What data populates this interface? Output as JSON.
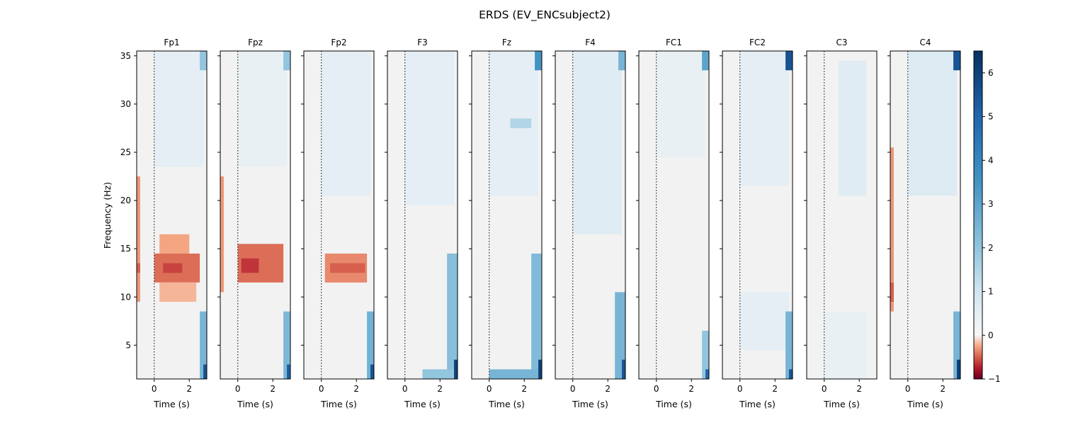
{
  "chart_data": {
    "type": "heatmap",
    "title": "ERDS (EV_ENCsubject2)",
    "ylabel": "Frequency (Hz)",
    "xlabel": "Time (s)",
    "xlim": [
      -1.0,
      3.0
    ],
    "ylim": [
      1.5,
      35.5
    ],
    "xticks": [
      0,
      2
    ],
    "yticks": [
      5,
      10,
      15,
      20,
      25,
      30,
      35
    ],
    "event_line_x": 0,
    "colorbar": {
      "min": -1,
      "max": 6.5,
      "ticks": [
        -1,
        0,
        1,
        2,
        3,
        4,
        5,
        6
      ],
      "colormap": "RdBu"
    },
    "baseline_color": "#f2f2f2",
    "channels": [
      "Fp1",
      "Fpz",
      "Fp2",
      "F3",
      "Fz",
      "F4",
      "FC1",
      "FC2",
      "C3",
      "C4"
    ],
    "regions": [
      {
        "channel": "Fp1",
        "x": [
          -1.0,
          -0.8
        ],
        "y": [
          9.5,
          22.5
        ],
        "value": -0.3
      },
      {
        "channel": "Fp1",
        "x": [
          -1.0,
          -0.8
        ],
        "y": [
          12.5,
          13.5
        ],
        "value": -0.5
      },
      {
        "channel": "Fp1",
        "x": [
          0.0,
          2.6
        ],
        "y": [
          11.5,
          14.5
        ],
        "value": -0.45
      },
      {
        "channel": "Fp1",
        "x": [
          0.3,
          2.0
        ],
        "y": [
          14.5,
          16.5
        ],
        "value": -0.25
      },
      {
        "channel": "Fp1",
        "x": [
          0.3,
          2.4
        ],
        "y": [
          9.5,
          11.5
        ],
        "value": -0.2
      },
      {
        "channel": "Fp1",
        "x": [
          0.5,
          1.6
        ],
        "y": [
          12.5,
          13.5
        ],
        "value": -0.6
      },
      {
        "channel": "Fp1",
        "x": [
          0.0,
          2.8
        ],
        "y": [
          23.5,
          35.5
        ],
        "value": 0.5
      },
      {
        "channel": "Fp1",
        "x": [
          2.6,
          3.0
        ],
        "y": [
          1.5,
          8.5
        ],
        "value": 2.5
      },
      {
        "channel": "Fp1",
        "x": [
          2.8,
          3.0
        ],
        "y": [
          1.5,
          3.0
        ],
        "value": 5.5
      },
      {
        "channel": "Fp1",
        "x": [
          2.6,
          3.0
        ],
        "y": [
          33.5,
          35.5
        ],
        "value": 2.0
      },
      {
        "channel": "Fpz",
        "x": [
          -1.0,
          -0.8
        ],
        "y": [
          10.5,
          22.5
        ],
        "value": -0.3
      },
      {
        "channel": "Fpz",
        "x": [
          0.0,
          2.6
        ],
        "y": [
          11.5,
          15.5
        ],
        "value": -0.45
      },
      {
        "channel": "Fpz",
        "x": [
          0.2,
          1.2
        ],
        "y": [
          12.5,
          14.0
        ],
        "value": -0.65
      },
      {
        "channel": "Fpz",
        "x": [
          0.0,
          2.8
        ],
        "y": [
          23.5,
          35.5
        ],
        "value": 0.4
      },
      {
        "channel": "Fpz",
        "x": [
          2.6,
          3.0
        ],
        "y": [
          1.5,
          8.5
        ],
        "value": 2.4
      },
      {
        "channel": "Fpz",
        "x": [
          2.8,
          3.0
        ],
        "y": [
          1.5,
          3.0
        ],
        "value": 5.2
      },
      {
        "channel": "Fpz",
        "x": [
          2.6,
          3.0
        ],
        "y": [
          33.5,
          35.5
        ],
        "value": 2.0
      },
      {
        "channel": "Fp2",
        "x": [
          0.2,
          2.6
        ],
        "y": [
          11.5,
          14.5
        ],
        "value": -0.35
      },
      {
        "channel": "Fp2",
        "x": [
          0.5,
          2.5
        ],
        "y": [
          12.5,
          13.5
        ],
        "value": -0.5
      },
      {
        "channel": "Fp2",
        "x": [
          0.0,
          2.8
        ],
        "y": [
          20.5,
          35.5
        ],
        "value": 0.5
      },
      {
        "channel": "Fp2",
        "x": [
          2.6,
          3.0
        ],
        "y": [
          1.5,
          8.5
        ],
        "value": 2.6
      },
      {
        "channel": "Fp2",
        "x": [
          2.8,
          3.0
        ],
        "y": [
          1.5,
          3.0
        ],
        "value": 5.5
      },
      {
        "channel": "F3",
        "x": [
          0.0,
          2.8
        ],
        "y": [
          19.5,
          35.5
        ],
        "value": 0.5
      },
      {
        "channel": "F3",
        "x": [
          2.4,
          3.0
        ],
        "y": [
          1.5,
          14.5
        ],
        "value": 2.2
      },
      {
        "channel": "F3",
        "x": [
          2.8,
          3.0
        ],
        "y": [
          1.5,
          3.5
        ],
        "value": 6.0
      },
      {
        "channel": "F3",
        "x": [
          1.0,
          2.8
        ],
        "y": [
          1.5,
          2.5
        ],
        "value": 2.0
      },
      {
        "channel": "Fz",
        "x": [
          0.0,
          2.8
        ],
        "y": [
          20.5,
          35.5
        ],
        "value": 0.5
      },
      {
        "channel": "Fz",
        "x": [
          1.2,
          2.4
        ],
        "y": [
          27.5,
          28.5
        ],
        "value": 1.5
      },
      {
        "channel": "Fz",
        "x": [
          2.4,
          3.0
        ],
        "y": [
          1.5,
          14.5
        ],
        "value": 2.3
      },
      {
        "channel": "Fz",
        "x": [
          2.6,
          3.0
        ],
        "y": [
          33.5,
          35.5
        ],
        "value": 3.5
      },
      {
        "channel": "Fz",
        "x": [
          2.8,
          3.0
        ],
        "y": [
          1.5,
          3.5
        ],
        "value": 6.0
      },
      {
        "channel": "Fz",
        "x": [
          0.0,
          2.8
        ],
        "y": [
          1.5,
          2.5
        ],
        "value": 2.5
      },
      {
        "channel": "F4",
        "x": [
          0.0,
          2.8
        ],
        "y": [
          16.5,
          35.5
        ],
        "value": 0.6
      },
      {
        "channel": "F4",
        "x": [
          2.4,
          3.0
        ],
        "y": [
          1.5,
          10.5
        ],
        "value": 2.5
      },
      {
        "channel": "F4",
        "x": [
          2.8,
          3.0
        ],
        "y": [
          1.5,
          3.5
        ],
        "value": 5.5
      },
      {
        "channel": "F4",
        "x": [
          2.6,
          3.0
        ],
        "y": [
          33.5,
          35.5
        ],
        "value": 2.5
      },
      {
        "channel": "FC1",
        "x": [
          0.0,
          2.8
        ],
        "y": [
          24.5,
          35.5
        ],
        "value": 0.4
      },
      {
        "channel": "FC1",
        "x": [
          2.6,
          3.0
        ],
        "y": [
          1.5,
          6.5
        ],
        "value": 2.0
      },
      {
        "channel": "FC1",
        "x": [
          2.8,
          3.0
        ],
        "y": [
          1.5,
          2.5
        ],
        "value": 5.0
      },
      {
        "channel": "FC1",
        "x": [
          2.6,
          3.0
        ],
        "y": [
          33.5,
          35.5
        ],
        "value": 3.0
      },
      {
        "channel": "FC2",
        "x": [
          0.0,
          2.8
        ],
        "y": [
          21.5,
          35.5
        ],
        "value": 0.5
      },
      {
        "channel": "FC2",
        "x": [
          0.0,
          2.8
        ],
        "y": [
          4.5,
          10.5
        ],
        "value": 0.5
      },
      {
        "channel": "FC2",
        "x": [
          2.6,
          3.0
        ],
        "y": [
          1.5,
          8.5
        ],
        "value": 2.5
      },
      {
        "channel": "FC2",
        "x": [
          2.6,
          3.0
        ],
        "y": [
          33.5,
          35.5
        ],
        "value": 5.5
      },
      {
        "channel": "FC2",
        "x": [
          2.8,
          3.0
        ],
        "y": [
          1.5,
          2.5
        ],
        "value": 5.5
      },
      {
        "channel": "C3",
        "x": [
          0.8,
          2.4
        ],
        "y": [
          20.5,
          34.5
        ],
        "value": 0.6
      },
      {
        "channel": "C3",
        "x": [
          0.0,
          2.4
        ],
        "y": [
          1.5,
          8.5
        ],
        "value": 0.4
      },
      {
        "channel": "C4",
        "x": [
          -1.0,
          -0.8
        ],
        "y": [
          8.5,
          25.5
        ],
        "value": -0.3
      },
      {
        "channel": "C4",
        "x": [
          -1.0,
          -0.8
        ],
        "y": [
          9.5,
          11.5
        ],
        "value": -0.5
      },
      {
        "channel": "C4",
        "x": [
          0.0,
          2.8
        ],
        "y": [
          20.5,
          35.5
        ],
        "value": 0.7
      },
      {
        "channel": "C4",
        "x": [
          2.6,
          3.0
        ],
        "y": [
          1.5,
          8.5
        ],
        "value": 2.5
      },
      {
        "channel": "C4",
        "x": [
          2.8,
          3.0
        ],
        "y": [
          1.5,
          3.5
        ],
        "value": 6.0
      },
      {
        "channel": "C4",
        "x": [
          2.6,
          3.0
        ],
        "y": [
          33.5,
          35.5
        ],
        "value": 5.5
      }
    ]
  }
}
